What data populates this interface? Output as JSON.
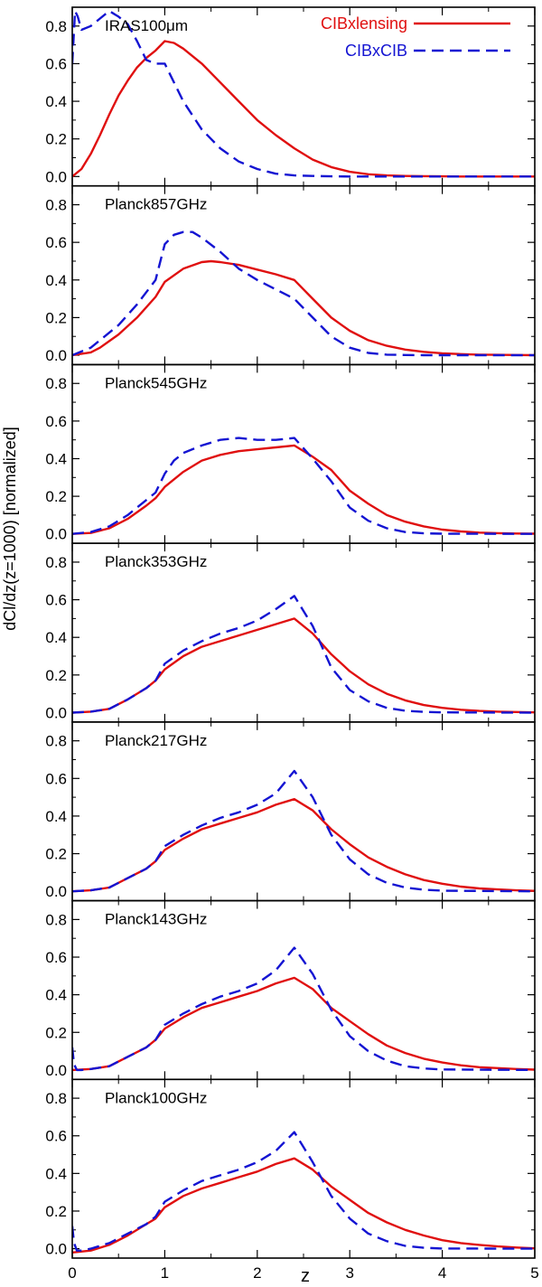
{
  "chart_data": {
    "type": "line",
    "figure": {
      "xlabel": "z",
      "ylabel": "dCl/dz(z=1000) [normalized]",
      "xlim": [
        0,
        5
      ],
      "ylim": [
        -0.05,
        0.9
      ],
      "xticks": [
        "0",
        "1",
        "2",
        "3",
        "4",
        "5"
      ],
      "yticks": [
        "0.0",
        "0.2",
        "0.4",
        "0.6",
        "0.8"
      ],
      "legend": {
        "position": "top-right of first panel",
        "entries": [
          {
            "name": "CIBxlensing",
            "color": "#e01010",
            "style": "solid"
          },
          {
            "name": "CIBxCIB",
            "color": "#1414d2",
            "style": "dashed"
          }
        ]
      }
    },
    "panels": [
      {
        "title": "IRAS100μm",
        "series": [
          {
            "name": "CIBxlensing",
            "color": "#e01010",
            "style": "solid",
            "x": [
              0,
              0.1,
              0.2,
              0.3,
              0.4,
              0.5,
              0.6,
              0.7,
              0.8,
              0.9,
              1.0,
              1.1,
              1.2,
              1.4,
              1.6,
              1.8,
              2.0,
              2.2,
              2.4,
              2.6,
              2.8,
              3.0,
              3.2,
              3.4,
              3.6,
              3.8,
              4.0,
              4.2,
              4.4,
              4.6,
              4.8,
              5.0
            ],
            "y": [
              0.0,
              0.04,
              0.12,
              0.22,
              0.33,
              0.43,
              0.51,
              0.58,
              0.63,
              0.67,
              0.72,
              0.71,
              0.68,
              0.6,
              0.5,
              0.4,
              0.3,
              0.22,
              0.15,
              0.09,
              0.05,
              0.025,
              0.012,
              0.006,
              0.003,
              0.002,
              0.001,
              0,
              0,
              0,
              0,
              0
            ]
          },
          {
            "name": "CIBxCIB",
            "color": "#1414d2",
            "style": "dashed",
            "x": [
              0,
              0.03,
              0.06,
              0.1,
              0.2,
              0.3,
              0.4,
              0.5,
              0.6,
              0.7,
              0.8,
              0.9,
              1.0,
              1.1,
              1.2,
              1.4,
              1.6,
              1.8,
              2.0,
              2.2,
              2.4,
              2.6,
              2.8,
              3.0,
              3.2,
              3.4,
              3.6,
              3.8,
              4.0,
              5.0
            ],
            "y": [
              0.6,
              0.88,
              0.85,
              0.78,
              0.8,
              0.84,
              0.88,
              0.85,
              0.81,
              0.72,
              0.62,
              0.6,
              0.6,
              0.5,
              0.4,
              0.25,
              0.15,
              0.08,
              0.04,
              0.015,
              0.006,
              0.003,
              0.001,
              0,
              0,
              0,
              0,
              0,
              0,
              0
            ]
          }
        ]
      },
      {
        "title": "Planck857GHz",
        "series": [
          {
            "name": "CIBxlensing",
            "color": "#e01010",
            "style": "solid",
            "x": [
              0,
              0.2,
              0.3,
              0.5,
              0.7,
              0.9,
              1.0,
              1.2,
              1.4,
              1.5,
              1.6,
              1.8,
              2.0,
              2.2,
              2.4,
              2.6,
              2.8,
              3.0,
              3.2,
              3.4,
              3.6,
              3.8,
              4.0,
              4.2,
              4.4,
              4.6,
              4.8,
              5.0
            ],
            "y": [
              0.0,
              0.015,
              0.04,
              0.11,
              0.2,
              0.31,
              0.39,
              0.46,
              0.495,
              0.5,
              0.495,
              0.48,
              0.455,
              0.43,
              0.4,
              0.3,
              0.2,
              0.13,
              0.08,
              0.05,
              0.03,
              0.018,
              0.01,
              0.006,
              0.003,
              0.002,
              0.001,
              0
            ]
          },
          {
            "name": "CIBxCIB",
            "color": "#1414d2",
            "style": "dashed",
            "x": [
              0,
              0.2,
              0.3,
              0.5,
              0.7,
              0.9,
              1.0,
              1.1,
              1.2,
              1.3,
              1.4,
              1.6,
              1.8,
              2.0,
              2.2,
              2.4,
              2.6,
              2.8,
              3.0,
              3.2,
              3.4,
              3.6,
              3.8,
              4.0,
              5.0
            ],
            "y": [
              0.0,
              0.04,
              0.08,
              0.16,
              0.27,
              0.4,
              0.59,
              0.64,
              0.655,
              0.655,
              0.625,
              0.55,
              0.46,
              0.4,
              0.35,
              0.3,
              0.2,
              0.1,
              0.04,
              0.012,
              0.003,
              0.001,
              0,
              0,
              0
            ]
          }
        ]
      },
      {
        "title": "Planck545GHz",
        "series": [
          {
            "name": "CIBxlensing",
            "color": "#e01010",
            "style": "solid",
            "x": [
              0,
              0.2,
              0.4,
              0.6,
              0.8,
              0.9,
              1.0,
              1.2,
              1.4,
              1.6,
              1.8,
              2.0,
              2.2,
              2.4,
              2.6,
              2.8,
              3.0,
              3.2,
              3.4,
              3.6,
              3.8,
              4.0,
              4.2,
              4.4,
              4.6,
              4.8,
              5.0
            ],
            "y": [
              0.0,
              0.005,
              0.03,
              0.08,
              0.15,
              0.19,
              0.25,
              0.33,
              0.39,
              0.42,
              0.44,
              0.45,
              0.46,
              0.47,
              0.41,
              0.34,
              0.23,
              0.16,
              0.1,
              0.065,
              0.04,
              0.023,
              0.013,
              0.007,
              0.004,
              0.002,
              0.001
            ]
          },
          {
            "name": "CIBxCIB",
            "color": "#1414d2",
            "style": "dashed",
            "x": [
              0,
              0.2,
              0.4,
              0.6,
              0.8,
              0.9,
              1.0,
              1.1,
              1.2,
              1.4,
              1.6,
              1.8,
              2.0,
              2.2,
              2.4,
              2.6,
              2.8,
              3.0,
              3.2,
              3.4,
              3.6,
              3.8,
              4.0,
              5.0
            ],
            "y": [
              0.0,
              0.01,
              0.04,
              0.1,
              0.18,
              0.22,
              0.32,
              0.39,
              0.43,
              0.47,
              0.5,
              0.51,
              0.5,
              0.5,
              0.51,
              0.4,
              0.28,
              0.14,
              0.07,
              0.03,
              0.01,
              0.003,
              0.001,
              0
            ]
          }
        ]
      },
      {
        "title": "Planck353GHz",
        "series": [
          {
            "name": "CIBxlensing",
            "color": "#e01010",
            "style": "solid",
            "x": [
              0,
              0.2,
              0.4,
              0.6,
              0.8,
              0.9,
              1.0,
              1.2,
              1.4,
              1.6,
              1.8,
              2.0,
              2.2,
              2.4,
              2.6,
              2.8,
              3.0,
              3.2,
              3.4,
              3.6,
              3.8,
              4.0,
              4.2,
              4.4,
              4.6,
              4.8,
              5.0
            ],
            "y": [
              0.0,
              0.005,
              0.02,
              0.07,
              0.13,
              0.17,
              0.23,
              0.3,
              0.35,
              0.38,
              0.41,
              0.44,
              0.47,
              0.5,
              0.42,
              0.31,
              0.22,
              0.15,
              0.1,
              0.065,
              0.04,
              0.025,
              0.015,
              0.009,
              0.005,
              0.003,
              0.001
            ]
          },
          {
            "name": "CIBxCIB",
            "color": "#1414d2",
            "style": "dashed",
            "x": [
              0,
              0.2,
              0.4,
              0.6,
              0.8,
              0.9,
              1.0,
              1.2,
              1.4,
              1.6,
              1.8,
              2.0,
              2.2,
              2.4,
              2.6,
              2.8,
              3.0,
              3.2,
              3.4,
              3.6,
              3.8,
              4.0,
              5.0
            ],
            "y": [
              0.0,
              0.005,
              0.02,
              0.07,
              0.13,
              0.17,
              0.26,
              0.33,
              0.38,
              0.42,
              0.45,
              0.49,
              0.55,
              0.62,
              0.46,
              0.24,
              0.12,
              0.06,
              0.025,
              0.01,
              0.004,
              0.001,
              0
            ]
          }
        ]
      },
      {
        "title": "Planck217GHz",
        "series": [
          {
            "name": "CIBxlensing",
            "color": "#e01010",
            "style": "solid",
            "x": [
              0,
              0.2,
              0.4,
              0.6,
              0.8,
              0.9,
              1.0,
              1.2,
              1.4,
              1.6,
              1.8,
              2.0,
              2.2,
              2.4,
              2.6,
              2.8,
              3.0,
              3.2,
              3.4,
              3.6,
              3.8,
              4.0,
              4.2,
              4.4,
              4.6,
              4.8,
              5.0
            ],
            "y": [
              0.0,
              0.005,
              0.02,
              0.07,
              0.12,
              0.16,
              0.22,
              0.28,
              0.33,
              0.36,
              0.39,
              0.42,
              0.46,
              0.49,
              0.43,
              0.33,
              0.25,
              0.18,
              0.13,
              0.09,
              0.06,
              0.04,
              0.025,
              0.015,
              0.01,
              0.005,
              0.002
            ]
          },
          {
            "name": "CIBxCIB",
            "color": "#1414d2",
            "style": "dashed",
            "x": [
              0,
              0.2,
              0.4,
              0.6,
              0.8,
              0.9,
              1.0,
              1.2,
              1.4,
              1.6,
              1.8,
              2.0,
              2.2,
              2.4,
              2.6,
              2.8,
              3.0,
              3.2,
              3.4,
              3.6,
              3.8,
              4.0,
              5.0
            ],
            "y": [
              0.0,
              0.005,
              0.02,
              0.07,
              0.12,
              0.16,
              0.24,
              0.3,
              0.35,
              0.39,
              0.42,
              0.46,
              0.52,
              0.64,
              0.5,
              0.3,
              0.17,
              0.09,
              0.045,
              0.02,
              0.008,
              0.003,
              0
            ]
          }
        ]
      },
      {
        "title": "Planck143GHz",
        "series": [
          {
            "name": "CIBxlensing",
            "color": "#e01010",
            "style": "solid",
            "x": [
              0,
              0.2,
              0.4,
              0.6,
              0.8,
              0.9,
              1.0,
              1.2,
              1.4,
              1.6,
              1.8,
              2.0,
              2.2,
              2.4,
              2.6,
              2.8,
              3.0,
              3.2,
              3.4,
              3.6,
              3.8,
              4.0,
              4.2,
              4.4,
              4.6,
              4.8,
              5.0
            ],
            "y": [
              0.0,
              0.005,
              0.02,
              0.07,
              0.12,
              0.16,
              0.22,
              0.28,
              0.33,
              0.36,
              0.39,
              0.42,
              0.46,
              0.49,
              0.43,
              0.33,
              0.26,
              0.19,
              0.13,
              0.09,
              0.06,
              0.04,
              0.025,
              0.015,
              0.01,
              0.005,
              0.002
            ]
          },
          {
            "name": "CIBxCIB",
            "color": "#1414d2",
            "style": "dashed",
            "x": [
              0,
              0.02,
              0.05,
              0.1,
              0.2,
              0.4,
              0.6,
              0.8,
              0.9,
              1.0,
              1.2,
              1.4,
              1.6,
              1.8,
              2.0,
              2.2,
              2.4,
              2.6,
              2.8,
              3.0,
              3.2,
              3.4,
              3.6,
              3.8,
              4.0,
              5.0
            ],
            "y": [
              0.12,
              0.03,
              0.0,
              0.0,
              0.005,
              0.02,
              0.07,
              0.12,
              0.16,
              0.24,
              0.3,
              0.35,
              0.39,
              0.42,
              0.46,
              0.53,
              0.65,
              0.51,
              0.32,
              0.18,
              0.1,
              0.05,
              0.02,
              0.008,
              0.003,
              0
            ]
          }
        ]
      },
      {
        "title": "Planck100GHz",
        "series": [
          {
            "name": "CIBxlensing",
            "color": "#e01010",
            "style": "solid",
            "x": [
              0,
              0.2,
              0.4,
              0.6,
              0.8,
              0.9,
              1.0,
              1.2,
              1.4,
              1.6,
              1.8,
              2.0,
              2.2,
              2.4,
              2.6,
              2.8,
              3.0,
              3.2,
              3.4,
              3.6,
              3.8,
              4.0,
              4.2,
              4.4,
              4.6,
              4.8,
              5.0
            ],
            "y": [
              -0.02,
              -0.01,
              0.02,
              0.07,
              0.13,
              0.16,
              0.22,
              0.28,
              0.32,
              0.35,
              0.38,
              0.41,
              0.45,
              0.48,
              0.42,
              0.33,
              0.26,
              0.19,
              0.14,
              0.1,
              0.07,
              0.045,
              0.03,
              0.02,
              0.012,
              0.006,
              0.002
            ]
          },
          {
            "name": "CIBxCIB",
            "color": "#1414d2",
            "style": "dashed",
            "x": [
              0,
              0.02,
              0.05,
              0.1,
              0.2,
              0.4,
              0.6,
              0.8,
              0.9,
              1.0,
              1.2,
              1.4,
              1.6,
              1.8,
              2.0,
              2.2,
              2.4,
              2.6,
              2.8,
              3.0,
              3.2,
              3.4,
              3.6,
              3.8,
              4.0,
              5.0
            ],
            "y": [
              0.12,
              0.03,
              -0.01,
              -0.01,
              0.0,
              0.03,
              0.08,
              0.13,
              0.17,
              0.25,
              0.31,
              0.36,
              0.39,
              0.42,
              0.46,
              0.52,
              0.62,
              0.46,
              0.28,
              0.16,
              0.08,
              0.04,
              0.015,
              0.005,
              0.001,
              0
            ]
          }
        ]
      }
    ]
  }
}
